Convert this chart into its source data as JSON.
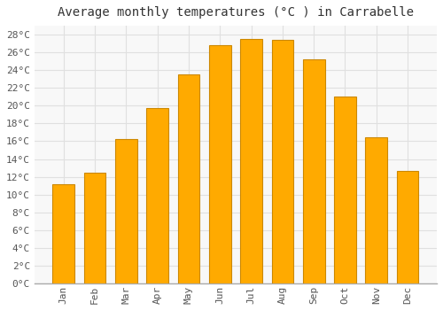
{
  "title": "Average monthly temperatures (°C ) in Carrabelle",
  "months": [
    "Jan",
    "Feb",
    "Mar",
    "Apr",
    "May",
    "Jun",
    "Jul",
    "Aug",
    "Sep",
    "Oct",
    "Nov",
    "Dec"
  ],
  "values": [
    11.2,
    12.5,
    16.2,
    19.7,
    23.5,
    26.8,
    27.5,
    27.4,
    25.2,
    21.0,
    16.4,
    12.7
  ],
  "bar_color": "#FFAA00",
  "bar_edge_color": "#CC8800",
  "background_color": "#FFFFFF",
  "plot_bg_color": "#F8F8F8",
  "grid_color": "#E0E0E0",
  "ylim": [
    0,
    29
  ],
  "ytick_step": 2,
  "title_fontsize": 10,
  "tick_fontsize": 8,
  "font_family": "monospace"
}
